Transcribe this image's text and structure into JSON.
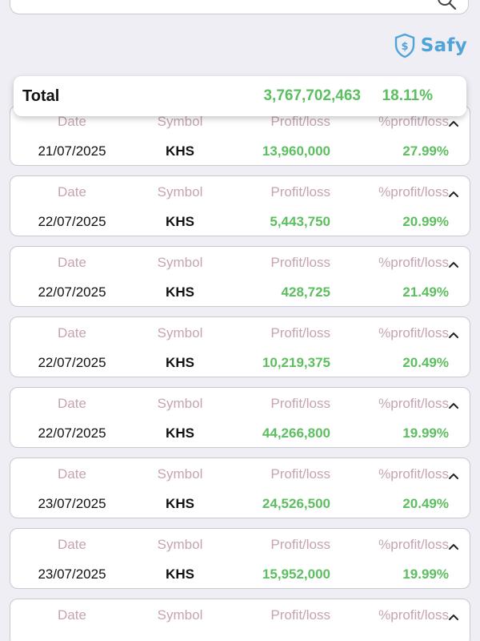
{
  "search": {
    "icon": "search-icon"
  },
  "brand": {
    "name": "Safy",
    "icon": "shield-dollar-icon",
    "color": "#4fa3d6"
  },
  "total": {
    "label": "Total",
    "amount": "3,767,702,463",
    "percent": "18.11%"
  },
  "columns": {
    "date": "Date",
    "symbol": "Symbol",
    "profit_loss": "Profit/loss",
    "percent_profit_loss": "%profit/loss"
  },
  "colors": {
    "profit": "#5bbf5f",
    "header_label": "#c5a3b3"
  },
  "rows": [
    {
      "date": "21/07/2025",
      "symbol": "KHS",
      "profit_loss": "13,960,000",
      "percent": "27.99%"
    },
    {
      "date": "22/07/2025",
      "symbol": "KHS",
      "profit_loss": "5,443,750",
      "percent": "20.99%"
    },
    {
      "date": "22/07/2025",
      "symbol": "KHS",
      "profit_loss": "428,725",
      "percent": "21.49%"
    },
    {
      "date": "22/07/2025",
      "symbol": "KHS",
      "profit_loss": "10,219,375",
      "percent": "20.49%"
    },
    {
      "date": "22/07/2025",
      "symbol": "KHS",
      "profit_loss": "44,266,800",
      "percent": "19.99%"
    },
    {
      "date": "23/07/2025",
      "symbol": "KHS",
      "profit_loss": "24,526,500",
      "percent": "20.49%"
    },
    {
      "date": "23/07/2025",
      "symbol": "KHS",
      "profit_loss": "15,952,000",
      "percent": "19.99%"
    }
  ]
}
